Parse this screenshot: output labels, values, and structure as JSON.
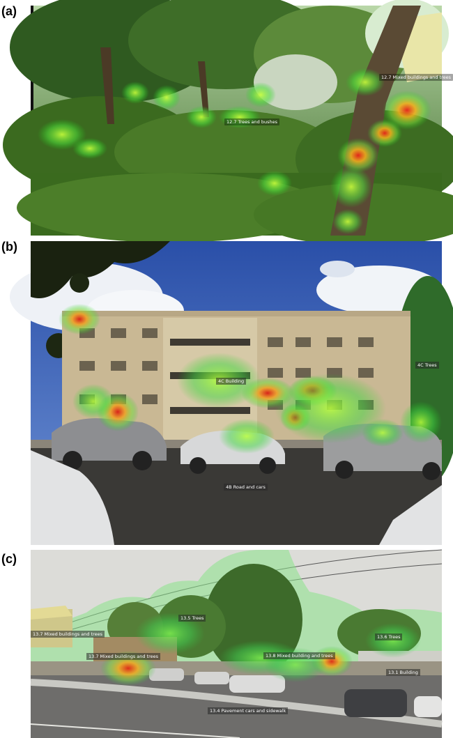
{
  "panels": [
    {
      "label": "(a)",
      "caption_top": "",
      "tags": [
        "12.7 Trees and bushes",
        "12.7 Mixed buildings and trees"
      ]
    },
    {
      "label": "(b)",
      "tags": [
        "4C Building",
        "4B Road and cars",
        "4C Trees"
      ]
    },
    {
      "label": "(c)",
      "tags": [
        "13.5 Trees",
        "13.7 Mixed buildings and trees",
        "13.7 Mixed buildings and trees",
        "13.8 Mixed building and trees",
        "13.6 Trees",
        "13.1 Building",
        "13.4 Pavement cars and sidewalk"
      ]
    }
  ]
}
